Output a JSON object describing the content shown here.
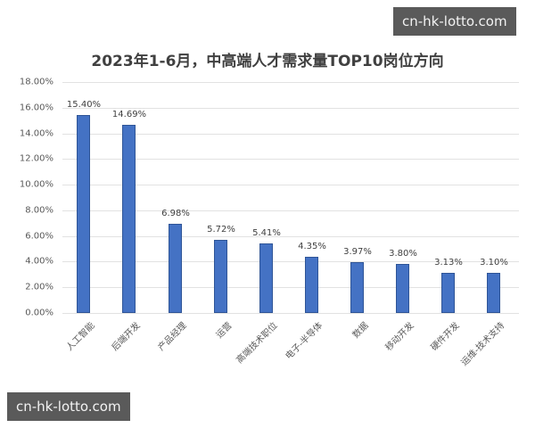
{
  "chart_data": {
    "type": "bar",
    "title": "2023年1-6月，中高端人才需求量TOP10岗位方向",
    "categories": [
      "人工智能",
      "后端开发",
      "产品经理",
      "运营",
      "高端技术职位",
      "电子-半导体",
      "数据",
      "移动开发",
      "硬件开发",
      "运维-技术支持"
    ],
    "values": [
      15.4,
      14.69,
      6.98,
      5.72,
      5.41,
      4.35,
      3.97,
      3.8,
      3.13,
      3.1
    ],
    "value_labels": [
      "15.40%",
      "14.69%",
      "6.98%",
      "5.72%",
      "5.41%",
      "4.35%",
      "3.97%",
      "3.80%",
      "3.13%",
      "3.10%"
    ],
    "xlabel": "",
    "ylabel": "",
    "ylim": [
      0,
      18
    ],
    "yticks": [
      "0.00%",
      "2.00%",
      "4.00%",
      "6.00%",
      "8.00%",
      "10.00%",
      "12.00%",
      "14.00%",
      "16.00%",
      "18.00%"
    ],
    "grid": true,
    "legend": "none",
    "bar_color": "#4472c4"
  },
  "watermarks": {
    "top_right": "cn-hk-lotto.com",
    "bottom_left": "cn-hk-lotto.com"
  }
}
